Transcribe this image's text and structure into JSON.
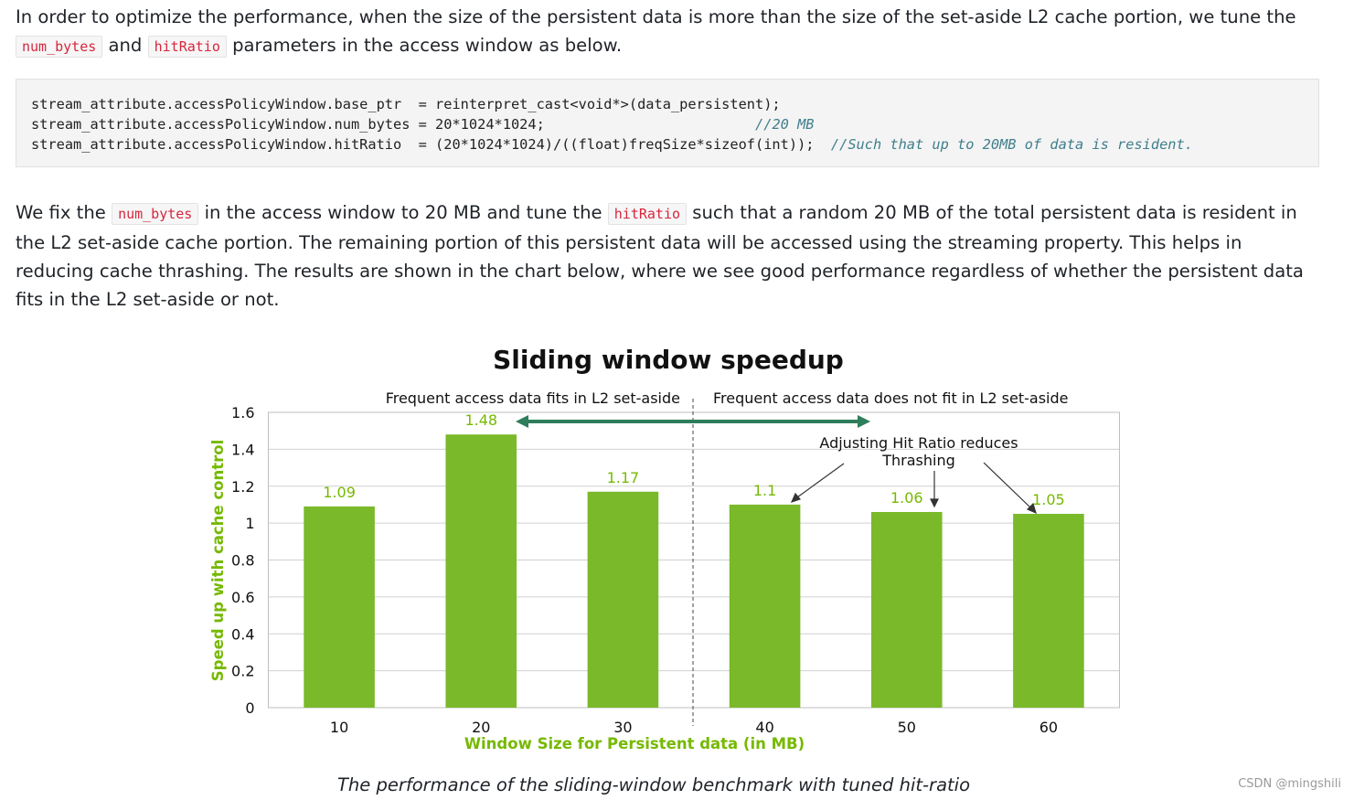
{
  "intro": {
    "before": "In order to optimize the performance, when the size of the persistent data is more than the size of the set-aside L2 cache portion, we tune the ",
    "code1": "num_bytes",
    "mid": " and ",
    "code2": "hitRatio",
    "after": " parameters in the access window as below."
  },
  "code": {
    "line1": "stream_attribute.accessPolicyWindow.base_ptr  = reinterpret_cast<void*>(data_persistent);",
    "line2_code": "stream_attribute.accessPolicyWindow.num_bytes = 20*1024*1024;",
    "line2_comment": "//20 MB",
    "line3_code": "stream_attribute.accessPolicyWindow.hitRatio  = (20*1024*1024)/((float)freqSize*sizeof(int));",
    "line3_comment": "//Such that up to 20MB of data is resident."
  },
  "para2": {
    "before": "We fix the ",
    "code1": "num_bytes",
    "mid": " in the access window to 20 MB and tune the ",
    "code2": "hitRatio",
    "after": " such that a random 20 MB of the total persistent data is resident in the L2 set-aside cache portion. The remaining portion of this persistent data will be accessed using the streaming property. This helps in reducing cache thrashing. The results are shown in the chart below, where we see good performance regardless of whether the persistent data fits in the L2 set-aside or not."
  },
  "chart_data": {
    "type": "bar",
    "title": "Sliding window speedup",
    "xlabel": "Window Size for Persistent data (in MB)",
    "ylabel": "Speed up with cache control",
    "categories": [
      "10",
      "20",
      "30",
      "40",
      "50",
      "60"
    ],
    "values": [
      1.09,
      1.48,
      1.17,
      1.1,
      1.06,
      1.05
    ],
    "value_labels": [
      "1.09",
      "1.48",
      "1.17",
      "1.1",
      "1.06",
      "1.05"
    ],
    "ylim": [
      0,
      1.6
    ],
    "yticks": [
      "0",
      "0.2",
      "0.4",
      "0.6",
      "0.8",
      "1",
      "1.2",
      "1.4",
      "1.6"
    ],
    "grid": true,
    "bar_color": "#7ab929",
    "label_color": "#76b900",
    "arrow_color": "#2e7d5b",
    "annotations": {
      "region_left": "Frequent access data fits in L2 set-aside",
      "region_right": "Frequent access data does not fit in L2 set-aside",
      "note_line1": "Adjusting Hit Ratio reduces",
      "note_line2": "Thrashing"
    }
  },
  "caption": "The performance of the sliding-window benchmark with tuned hit-ratio",
  "watermark": "CSDN @mingshili"
}
